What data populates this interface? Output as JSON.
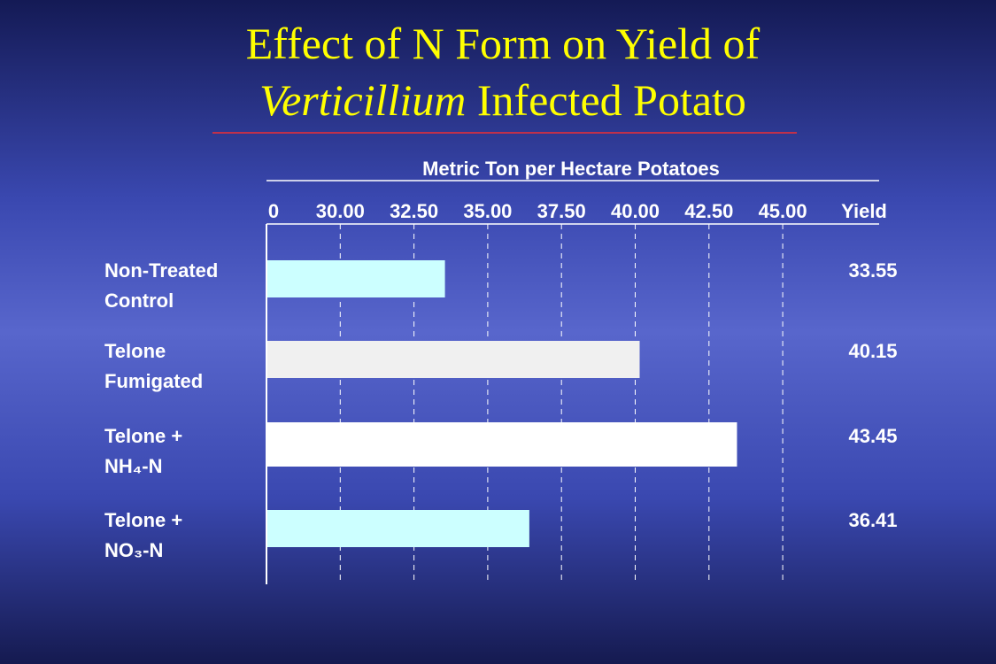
{
  "chart_data": {
    "type": "bar",
    "orientation": "horizontal",
    "title": {
      "line1": "Effect of N Form on Yield of",
      "line2_italic": "Verticillium",
      "line2": "Infected Potato"
    },
    "x_label": "Metric Ton per Hectare Potatoes",
    "value_column_header": "Yield",
    "categories": [
      [
        "Non-Treated",
        "Control"
      ],
      [
        "Telone",
        "Fumigated"
      ],
      [
        "Telone +",
        "NH₄-N"
      ],
      [
        "Telone +",
        "NO₃-N"
      ]
    ],
    "values": [
      33.55,
      40.15,
      43.45,
      36.41
    ],
    "colors": [
      "#ccffff",
      "#f0f0f0",
      "#ffffff",
      "#ccffff"
    ],
    "xlim": [
      0,
      45
    ],
    "xticks": [
      0,
      {
        "value": 30,
        "label": "30.00"
      },
      {
        "value": 32.5,
        "label": "32.50"
      },
      {
        "value": 35,
        "label": "35.00"
      },
      {
        "value": 37.5,
        "label": "37.50"
      },
      {
        "value": 40,
        "label": "40.00"
      },
      {
        "value": 42.5,
        "label": "42.50"
      },
      {
        "value": 45,
        "label": "45.00"
      }
    ],
    "grid": true
  }
}
